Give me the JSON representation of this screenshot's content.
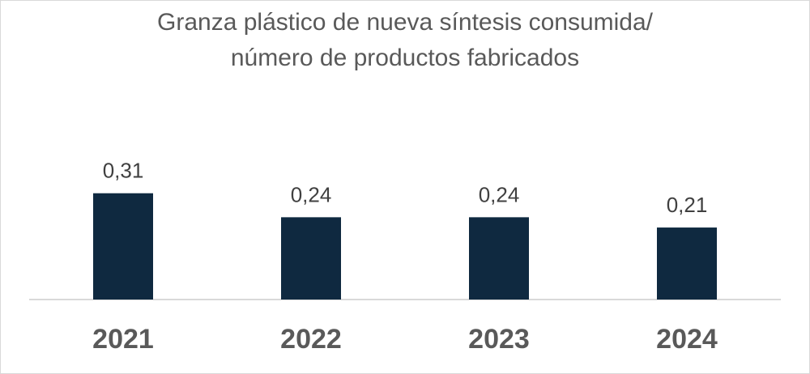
{
  "chart_data": {
    "type": "bar",
    "title_lines": [
      "Granza plástico de nueva síntesis consumida/",
      "número de productos fabricados"
    ],
    "categories": [
      "2021",
      "2022",
      "2023",
      "2024"
    ],
    "values": [
      0.31,
      0.24,
      0.24,
      0.21
    ],
    "value_labels": [
      "0,31",
      "0,24",
      "0,24",
      "0,21"
    ],
    "xlabel": "",
    "ylabel": "",
    "ylim": [
      0,
      0.35
    ],
    "grid": false,
    "legend": "none",
    "colors": {
      "bar": "#0f2940",
      "title": "#595959",
      "axis": "#d9d9d9"
    }
  }
}
